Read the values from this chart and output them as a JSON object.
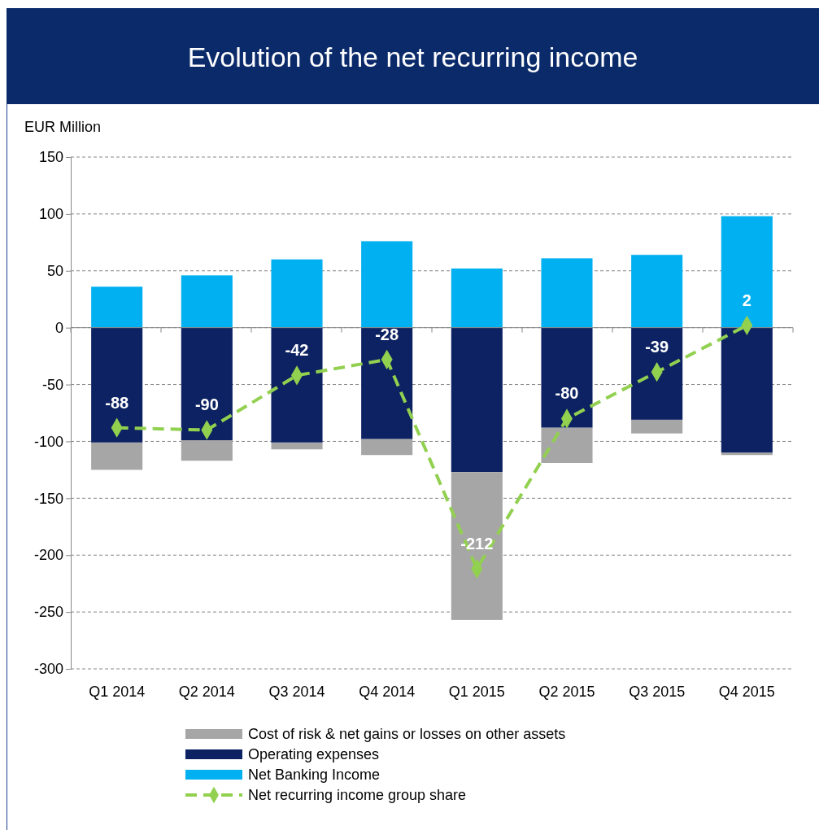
{
  "chart_data": {
    "type": "bar",
    "title": "Evolution of the net recurring income",
    "ylabel": "EUR Million",
    "categories": [
      "Q1 2014",
      "Q2 2014",
      "Q3 2014",
      "Q4 2014",
      "Q1 2015",
      "Q2 2015",
      "Q3 2015",
      "Q4 2015"
    ],
    "stacked": true,
    "series": [
      {
        "name": "Operating expenses",
        "color": "#0d2262",
        "values": [
          -101,
          -99,
          -101,
          -98,
          -127,
          -88,
          -81,
          -110
        ]
      },
      {
        "name": "Cost of risk & net gains or losses on other assets",
        "color": "#a6a6a6",
        "values": [
          -24,
          -18,
          -6,
          -14,
          -130,
          -31,
          -12,
          -2
        ]
      },
      {
        "name": "Net Banking Income",
        "color": "#00b0f0",
        "values": [
          36,
          46,
          60,
          76,
          52,
          61,
          64,
          98
        ]
      },
      {
        "name": "Net recurring income group share",
        "type": "line",
        "color": "#92d050",
        "line_style": "dashed",
        "marker": "diamond",
        "values": [
          -88,
          -90,
          -42,
          -28,
          -212,
          -80,
          -39,
          2
        ],
        "value_labels": [
          "-88",
          "-90",
          "-42",
          "-28",
          "-212",
          "-80",
          "-39",
          "2"
        ]
      }
    ],
    "ylim": [
      -300,
      150
    ],
    "yticks": [
      -300,
      -250,
      -200,
      -150,
      -100,
      -50,
      0,
      50,
      100,
      150
    ],
    "grid": "y",
    "legend": "bottom"
  }
}
